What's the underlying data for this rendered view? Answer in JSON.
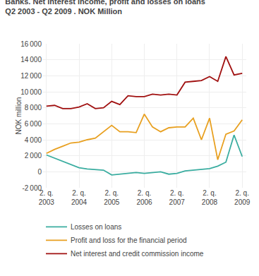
{
  "chart_data": {
    "type": "line",
    "title": "Banks. Net interest income, profit and losses on loans",
    "subtitle": "Q2 2003 - Q2 2009 . NOK Million",
    "ylabel": "NOK million",
    "categories": [
      "2. q.\n2003",
      null,
      null,
      null,
      "2. q.\n2004",
      null,
      null,
      null,
      "2. q.\n2005",
      null,
      null,
      null,
      "2. q.\n2006",
      null,
      null,
      null,
      "2. q.\n2007",
      null,
      null,
      null,
      "2. q.\n2008",
      null,
      null,
      null,
      "2. q.\n2009"
    ],
    "series": [
      {
        "name": "Losses on loans",
        "color": "#3aada0",
        "values": [
          2100,
          1700,
          1300,
          900,
          500,
          350,
          300,
          200,
          -400,
          -300,
          -200,
          -100,
          -200,
          -100,
          0,
          -300,
          -200,
          100,
          200,
          250,
          400,
          700,
          1200,
          4600,
          1900
        ]
      },
      {
        "name": "Profit and loss for the financial period",
        "color": "#e8a020",
        "values": [
          2300,
          2800,
          3200,
          3600,
          3700,
          4000,
          4200,
          5000,
          5800,
          5000,
          5000,
          4900,
          7200,
          5600,
          5000,
          5500,
          5600,
          5600,
          6700,
          4000,
          6700,
          1500,
          4700,
          5100,
          6500
        ]
      },
      {
        "name": "Net interest and credit commission income",
        "color": "#a01010",
        "values": [
          8200,
          8300,
          7900,
          7900,
          8100,
          8500,
          7900,
          8000,
          8800,
          8400,
          9500,
          9400,
          9400,
          9700,
          9600,
          9700,
          9600,
          11200,
          11300,
          11400,
          11900,
          11300,
          14400,
          12100,
          12300
        ]
      }
    ],
    "ylim": [
      -2000,
      16000
    ],
    "yticks": [
      {
        "value": -2000,
        "label": "-2 000"
      },
      0,
      {
        "value": 2000,
        "label": "2 000"
      },
      {
        "value": 4000,
        "label": "4 000"
      },
      {
        "value": 6000,
        "label": "6 000"
      },
      {
        "value": 8000,
        "label": "8 000"
      },
      {
        "value": 10000,
        "label": "10 000"
      },
      {
        "value": 12000,
        "label": "12 000"
      },
      {
        "value": 14000,
        "label": "14 000"
      },
      {
        "value": 16000,
        "label": "16 000"
      }
    ],
    "grid": true,
    "legend": "below"
  }
}
